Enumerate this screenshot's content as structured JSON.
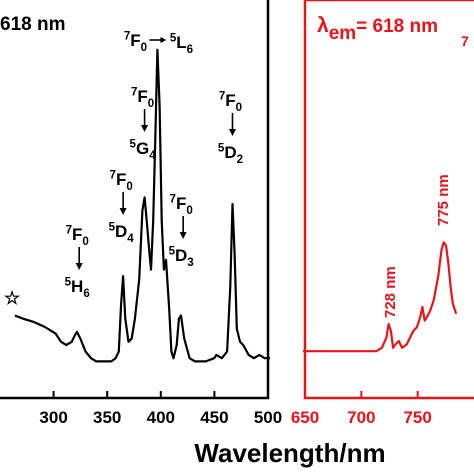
{
  "chart_data": [
    {
      "type": "line",
      "panel": "left",
      "color": "#000000",
      "title_fragment": "618 nm",
      "xlabel": "Wavelength/nm",
      "xlim": [
        250,
        500
      ],
      "x_ticks": [
        "300",
        "350",
        "400",
        "450",
        "500"
      ],
      "star_marker": "☆",
      "series": [
        {
          "x": [
            262,
            270,
            280,
            290,
            300,
            305,
            310,
            315,
            318,
            320,
            323,
            328,
            333,
            338,
            345,
            352,
            356,
            359,
            361,
            363,
            365,
            368,
            371,
            374,
            378,
            381,
            383,
            385,
            387,
            389,
            391,
            393,
            395,
            397,
            399,
            401,
            403,
            406,
            408,
            410,
            413,
            415,
            417,
            420,
            425,
            430,
            440,
            448,
            450,
            455,
            460,
            463,
            465,
            467,
            469,
            472,
            475,
            480,
            485,
            490,
            495,
            500
          ],
          "y": [
            0.16,
            0.15,
            0.14,
            0.125,
            0.105,
            0.08,
            0.07,
            0.08,
            0.1,
            0.11,
            0.09,
            0.05,
            0.03,
            0.02,
            0.02,
            0.02,
            0.03,
            0.05,
            0.19,
            0.28,
            0.15,
            0.08,
            0.09,
            0.15,
            0.27,
            0.48,
            0.52,
            0.45,
            0.37,
            0.3,
            0.45,
            0.7,
            0.97,
            0.8,
            0.45,
            0.3,
            0.33,
            0.18,
            0.05,
            0.03,
            0.07,
            0.15,
            0.16,
            0.09,
            0.03,
            0.02,
            0.02,
            0.03,
            0.04,
            0.03,
            0.05,
            0.25,
            0.5,
            0.35,
            0.12,
            0.08,
            0.07,
            0.04,
            0.03,
            0.04,
            0.03,
            0.03
          ]
        }
      ],
      "annotations": [
        {
          "x": 322,
          "y": 0.1,
          "ground": "7F0",
          "excited": "5H6"
        },
        {
          "x": 363,
          "y": 0.28,
          "ground": "7F0",
          "excited": "5D4"
        },
        {
          "x": 383,
          "y": 0.52,
          "ground": "7F0",
          "excited": "5G4"
        },
        {
          "x": 395,
          "y": 0.97,
          "ground": "7F0",
          "excited": "5L6"
        },
        {
          "x": 419,
          "y": 0.16,
          "ground": "7F0",
          "excited": "5D3"
        },
        {
          "x": 465,
          "y": 0.5,
          "ground": "7F0",
          "excited": "5D2"
        }
      ]
    },
    {
      "type": "line",
      "panel": "right",
      "color": "#e8141b",
      "title_symbol": "λ",
      "title_sub": "em",
      "title_value": "= 618 nm",
      "title_cutoff": "7",
      "xlim": [
        650,
        800
      ],
      "x_ticks": [
        "650",
        "700",
        "750"
      ],
      "series": [
        {
          "x": [
            650,
            665,
            680,
            700,
            715,
            720,
            724,
            726,
            728,
            730,
            732,
            735,
            738,
            742,
            745,
            748,
            751,
            754,
            756,
            758,
            760,
            763,
            766,
            770,
            773,
            775,
            777,
            779,
            781,
            783,
            786
          ],
          "y": [
            0.02,
            0.02,
            0.02,
            0.02,
            0.02,
            0.03,
            0.06,
            0.1,
            0.08,
            0.03,
            0.04,
            0.05,
            0.03,
            0.04,
            0.06,
            0.08,
            0.09,
            0.12,
            0.15,
            0.11,
            0.12,
            0.14,
            0.17,
            0.24,
            0.32,
            0.34,
            0.33,
            0.28,
            0.21,
            0.16,
            0.13
          ]
        }
      ],
      "annotations": [
        {
          "label": "728 nm",
          "x": 728
        },
        {
          "label": "775 nm",
          "x": 775
        }
      ]
    }
  ]
}
